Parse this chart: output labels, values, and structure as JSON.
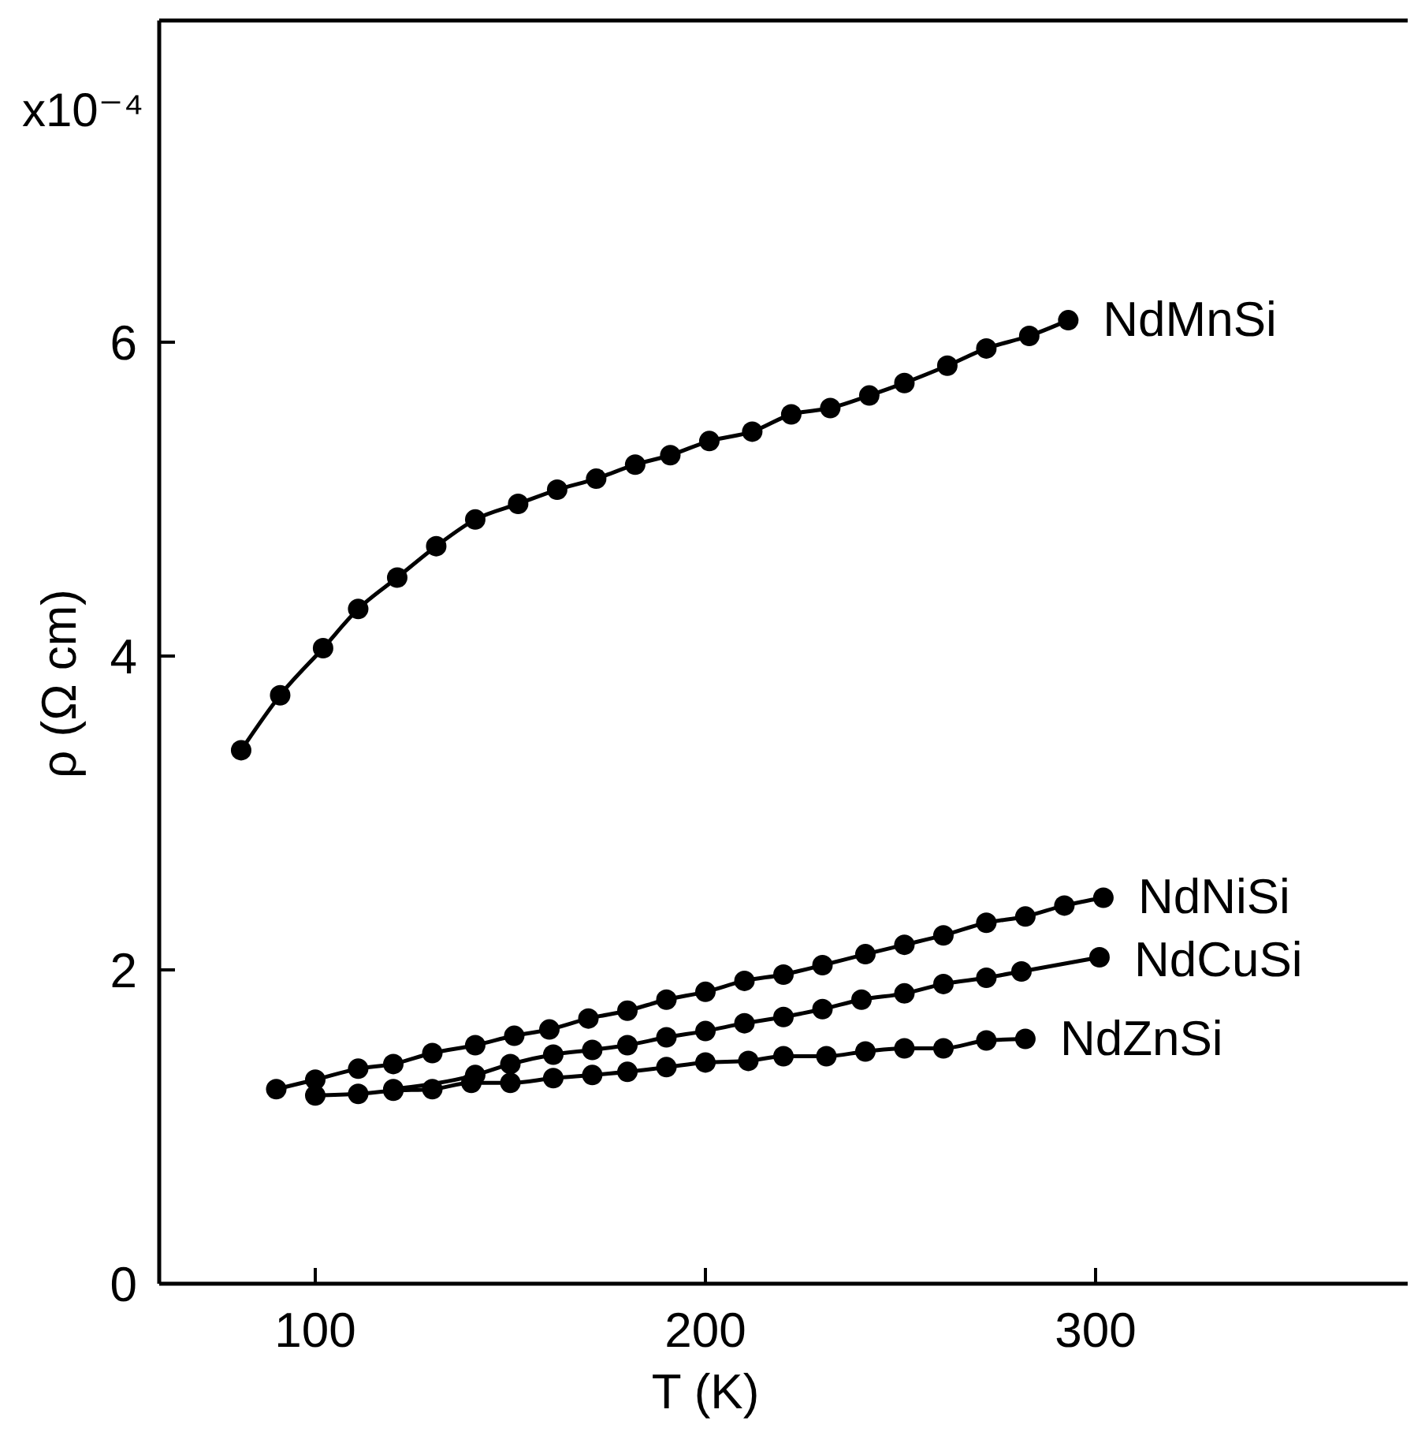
{
  "chart_data": {
    "type": "line",
    "xlabel": "T (K)",
    "ylabel": "ρ (Ω cm)",
    "annotations": [
      "x10⁻⁴"
    ],
    "xlim": [
      60,
      380
    ],
    "xticks": [
      100,
      200,
      300
    ],
    "ylim": [
      0,
      8.05
    ],
    "yticks": [
      0,
      2,
      4,
      6
    ],
    "grid": false,
    "legend": false,
    "marker": "circle",
    "line_style": "solid",
    "series": [
      {
        "name": "NdMnSi",
        "color": "#000000",
        "x": [
          81,
          91,
          102,
          111,
          121,
          131,
          141,
          152,
          162,
          172,
          182,
          191,
          201,
          212,
          222,
          232,
          242,
          251,
          262,
          272,
          283,
          293
        ],
        "values": [
          3.4,
          3.75,
          4.05,
          4.3,
          4.5,
          4.7,
          4.87,
          4.97,
          5.06,
          5.13,
          5.22,
          5.28,
          5.37,
          5.43,
          5.54,
          5.58,
          5.66,
          5.74,
          5.85,
          5.96,
          6.04,
          6.14
        ]
      },
      {
        "name": "NdNiSi",
        "color": "#000000",
        "x": [
          90,
          100,
          111,
          120,
          130,
          141,
          151,
          160,
          170,
          180,
          190,
          200,
          210,
          220,
          230,
          241,
          251,
          261,
          272,
          282,
          292,
          302
        ],
        "values": [
          1.24,
          1.3,
          1.37,
          1.4,
          1.47,
          1.52,
          1.58,
          1.62,
          1.69,
          1.74,
          1.81,
          1.86,
          1.93,
          1.97,
          2.03,
          2.1,
          2.16,
          2.22,
          2.3,
          2.34,
          2.41,
          2.46
        ]
      },
      {
        "name": "NdCuSi",
        "color": "#000000",
        "x": [
          120,
          141,
          150,
          161,
          171,
          180,
          190,
          200,
          210,
          220,
          230,
          240,
          251,
          261,
          272,
          281,
          301
        ],
        "values": [
          1.24,
          1.33,
          1.4,
          1.46,
          1.49,
          1.52,
          1.57,
          1.61,
          1.66,
          1.7,
          1.75,
          1.81,
          1.85,
          1.91,
          1.95,
          1.99,
          2.08
        ]
      },
      {
        "name": "NdZnSi",
        "color": "#000000",
        "x": [
          100,
          111,
          120,
          130,
          140,
          150,
          161,
          171,
          180,
          190,
          200,
          211,
          220,
          231,
          241,
          251,
          261,
          272,
          282
        ],
        "values": [
          1.2,
          1.21,
          1.23,
          1.24,
          1.28,
          1.28,
          1.31,
          1.33,
          1.35,
          1.38,
          1.41,
          1.42,
          1.45,
          1.45,
          1.48,
          1.5,
          1.5,
          1.55,
          1.56
        ]
      }
    ]
  }
}
